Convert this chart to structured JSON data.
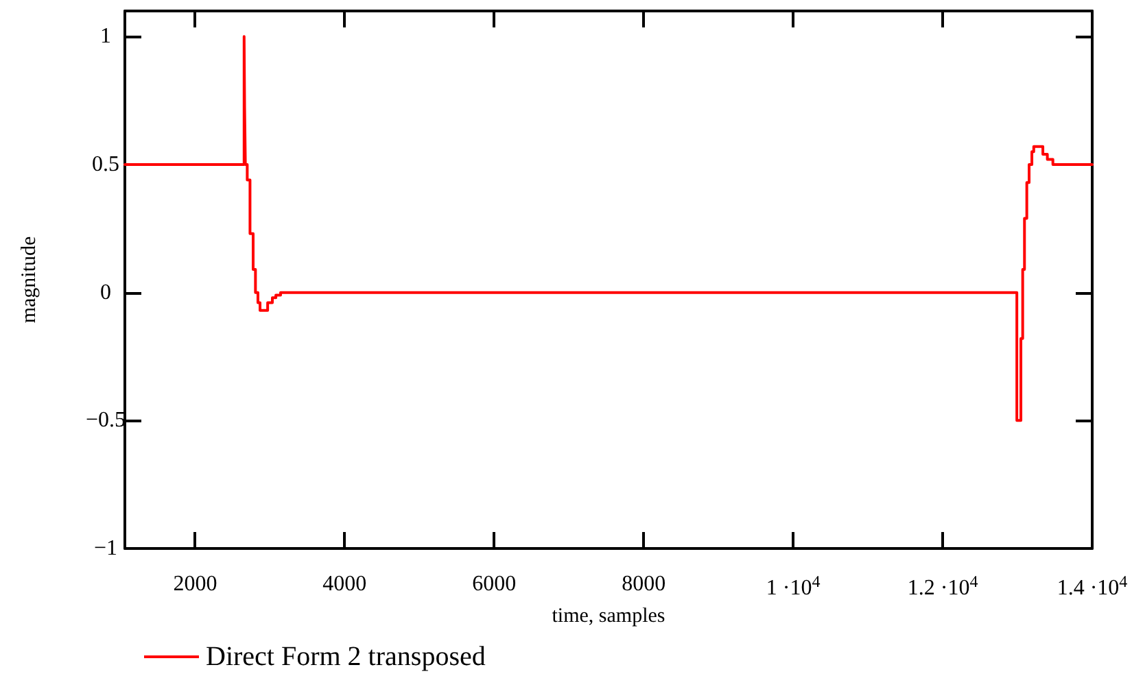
{
  "chart_data": {
    "type": "step",
    "xlabel": "time, samples",
    "ylabel": "magnitude",
    "series": [
      {
        "name": "Direct Form 2 transposed",
        "color": "#ff0000",
        "x": [
          1060,
          2655,
          2662,
          2672,
          2697,
          2734,
          2776,
          2807,
          2840,
          2868,
          2930,
          2970,
          3033,
          3080,
          3143,
          12992,
          13046,
          13070,
          13094,
          13125,
          13156,
          13193,
          13218,
          13280,
          13340,
          13400,
          13474,
          14000
        ],
        "values": [
          0.5,
          1.0,
          0.72,
          0.5,
          0.44,
          0.23,
          0.09,
          0.0,
          -0.04,
          -0.07,
          -0.07,
          -0.04,
          -0.02,
          -0.01,
          0,
          -0.5,
          -0.18,
          0.09,
          0.29,
          0.43,
          0.5,
          0.55,
          0.57,
          0.57,
          0.54,
          0.52,
          0.5,
          0.5
        ]
      }
    ],
    "xlim": [
      1060,
      14000
    ],
    "ylim": [
      -1,
      1.1
    ],
    "xticks": [
      2000,
      4000,
      6000,
      8000,
      {
        "value": 10000,
        "label": "1 ·10$^{4}$"
      },
      {
        "value": 12000,
        "label": "1.2 ·10$^{4}$"
      },
      {
        "value": 14000,
        "label": "1.4 ·10$^{4}$"
      }
    ],
    "yticks": [
      {
        "value": -1,
        "label": "−1"
      },
      {
        "value": -0.5,
        "label": "−0.5"
      },
      0,
      0.5,
      1
    ],
    "grid": false,
    "legend": "bottom left",
    "line_style": "solid",
    "marker": "none"
  }
}
